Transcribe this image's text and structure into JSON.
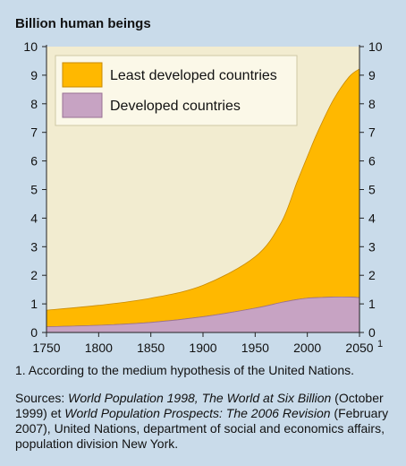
{
  "chart_data": {
    "type": "area",
    "stacked": true,
    "title": "Billion human beings",
    "x": [
      1750,
      1800,
      1850,
      1900,
      1950,
      1975,
      1990,
      2000,
      2010,
      2025,
      2040,
      2050
    ],
    "series": [
      {
        "name": "Developed countries",
        "color": "#c7a3c3",
        "values": [
          0.2,
          0.25,
          0.35,
          0.55,
          0.85,
          1.05,
          1.15,
          1.2,
          1.22,
          1.24,
          1.24,
          1.22
        ]
      },
      {
        "name": "Least developed countries",
        "color": "#ffb800",
        "values": [
          0.58,
          0.7,
          0.85,
          1.1,
          1.8,
          2.8,
          4.1,
          4.95,
          5.8,
          6.9,
          7.7,
          8.0
        ]
      }
    ],
    "xticks": [
      "1750",
      "1800",
      "1850",
      "1900",
      "1950",
      "2000",
      "2050"
    ],
    "xlast_sup": "1",
    "yticks": [
      "0",
      "1",
      "2",
      "3",
      "4",
      "5",
      "6",
      "7",
      "8",
      "9",
      "10"
    ],
    "xlim": [
      1750,
      2050
    ],
    "ylim": [
      0,
      10
    ],
    "grid": false,
    "legend_position": "top-left",
    "plot_bg": "#f2ecd0",
    "page_bg": "#c9dbea"
  },
  "footnote": "1. According to the medium hypothesis of the United Nations.",
  "sources": {
    "prefix": "Sources: ",
    "title1": "World Population 1998, The World at Six Billion",
    "mid1": " (October 1999) et ",
    "title2": "World Population Prospects: The 2006 Revision",
    "rest": " (February 2007), United Nations, department of social and economics affairs, population division New York."
  }
}
